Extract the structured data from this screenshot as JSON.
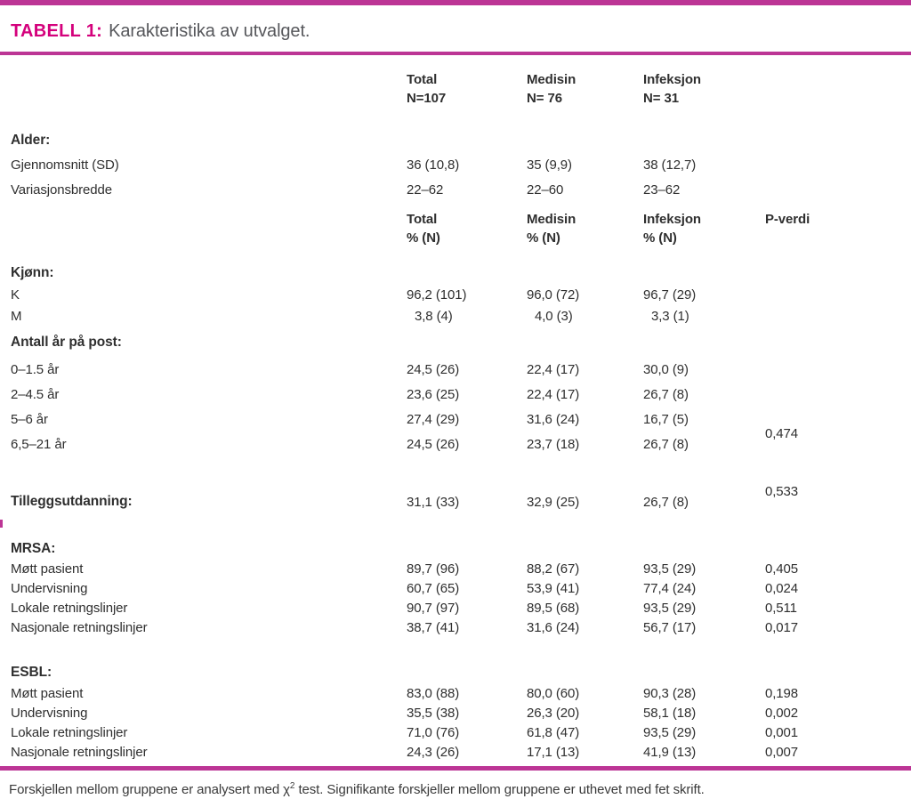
{
  "colors": {
    "accent_line": "#bc3595",
    "title_accent": "#d4017c"
  },
  "title": {
    "label": "TABELL 1:",
    "text": "Karakteristika av utvalget."
  },
  "header_n": {
    "total": {
      "name": "Total",
      "sub": "N=107"
    },
    "medisin": {
      "name": "Medisin",
      "sub": "N= 76"
    },
    "infeksjon": {
      "name": "Infeksjon",
      "sub": "N= 31"
    }
  },
  "header_pct": {
    "total": {
      "name": "Total",
      "sub": "% (N)"
    },
    "medisin": {
      "name": "Medisin",
      "sub": "% (N)"
    },
    "infeksjon": {
      "name": "Infeksjon",
      "sub": "% (N)"
    },
    "p": {
      "name": "P-verdi",
      "sub": ""
    }
  },
  "sections": {
    "alder": {
      "heading": "Alder:",
      "rows": [
        {
          "label": "Gjennomsnitt (SD)",
          "total": "36 (10,8)",
          "medisin": "35 (9,9)",
          "infeksjon": "38 (12,7)",
          "p": ""
        },
        {
          "label": "Variasjonsbredde",
          "total": "22–62",
          "medisin": "22–60",
          "infeksjon": "23–62",
          "p": ""
        }
      ]
    },
    "kjonn": {
      "heading": "Kjønn:",
      "rows": [
        {
          "label": "K",
          "total": "96,2 (101)",
          "medisin": "96,0 (72)",
          "infeksjon": "96,7 (29)",
          "p": ""
        },
        {
          "label": "M",
          "total": "3,8 (4)",
          "medisin": "4,0 (3)",
          "infeksjon": "3,3 (1)",
          "p": ""
        }
      ]
    },
    "antall_ar": {
      "heading": "Antall år på post:",
      "rows": [
        {
          "label": "0–1.5 år",
          "total": "24,5 (26)",
          "medisin": "22,4 (17)",
          "infeksjon": "30,0 (9)",
          "p": ""
        },
        {
          "label": "2–4.5 år",
          "total": "23,6 (25)",
          "medisin": "22,4 (17)",
          "infeksjon": "26,7 (8)",
          "p": ""
        },
        {
          "label": "5–6 år",
          "total": "27,4 (29)",
          "medisin": "31,6 (24)",
          "infeksjon": "16,7 (5)",
          "p": ""
        },
        {
          "label": "6,5–21 år",
          "total": "24,5 (26)",
          "medisin": "23,7 (18)",
          "infeksjon": "26,7 (8)",
          "p": "0,474"
        }
      ]
    },
    "tillegg": {
      "heading": "Tilleggsutdanning:",
      "row": {
        "total": "31,1 (33)",
        "medisin": "32,9 (25)",
        "infeksjon": "26,7 (8)",
        "p": "0,533"
      }
    },
    "mrsa": {
      "heading": "MRSA:",
      "rows": [
        {
          "label": "Møtt pasient",
          "total": "89,7 (96)",
          "medisin": "88,2 (67)",
          "infeksjon": "93,5 (29)",
          "p": "0,405"
        },
        {
          "label": "Undervisning",
          "total": "60,7 (65)",
          "medisin": "53,9 (41)",
          "infeksjon": "77,4 (24)",
          "p": "0,024"
        },
        {
          "label": "Lokale retningslinjer",
          "total": "90,7 (97)",
          "medisin": "89,5 (68)",
          "infeksjon": "93,5 (29)",
          "p": "0,511"
        },
        {
          "label": "Nasjonale retningslinjer",
          "total": "38,7 (41)",
          "medisin": "31,6 (24)",
          "infeksjon": "56,7 (17)",
          "p": "0,017"
        }
      ]
    },
    "esbl": {
      "heading": "ESBL:",
      "rows": [
        {
          "label": "Møtt pasient",
          "total": "83,0 (88)",
          "medisin": "80,0 (60)",
          "infeksjon": "90,3 (28)",
          "p": "0,198"
        },
        {
          "label": "Undervisning",
          "total": "35,5 (38)",
          "medisin": "26,3 (20)",
          "infeksjon": "58,1 (18)",
          "p": "0,002"
        },
        {
          "label": "Lokale retningslinjer",
          "total": "71,0 (76)",
          "medisin": "61,8 (47)",
          "infeksjon": "93,5 (29)",
          "p": "0,001"
        },
        {
          "label": "Nasjonale retningslinjer",
          "total": "24,3 (26)",
          "medisin": "17,1 (13)",
          "infeksjon": "41,9 (13)",
          "p": "0,007"
        }
      ]
    }
  },
  "footnote": {
    "pre": "Forskjellen mellom gruppene er analysert med χ",
    "sup": "2",
    "post": " test. Signifikante forskjeller mellom gruppene er uthevet med fet skrift."
  }
}
